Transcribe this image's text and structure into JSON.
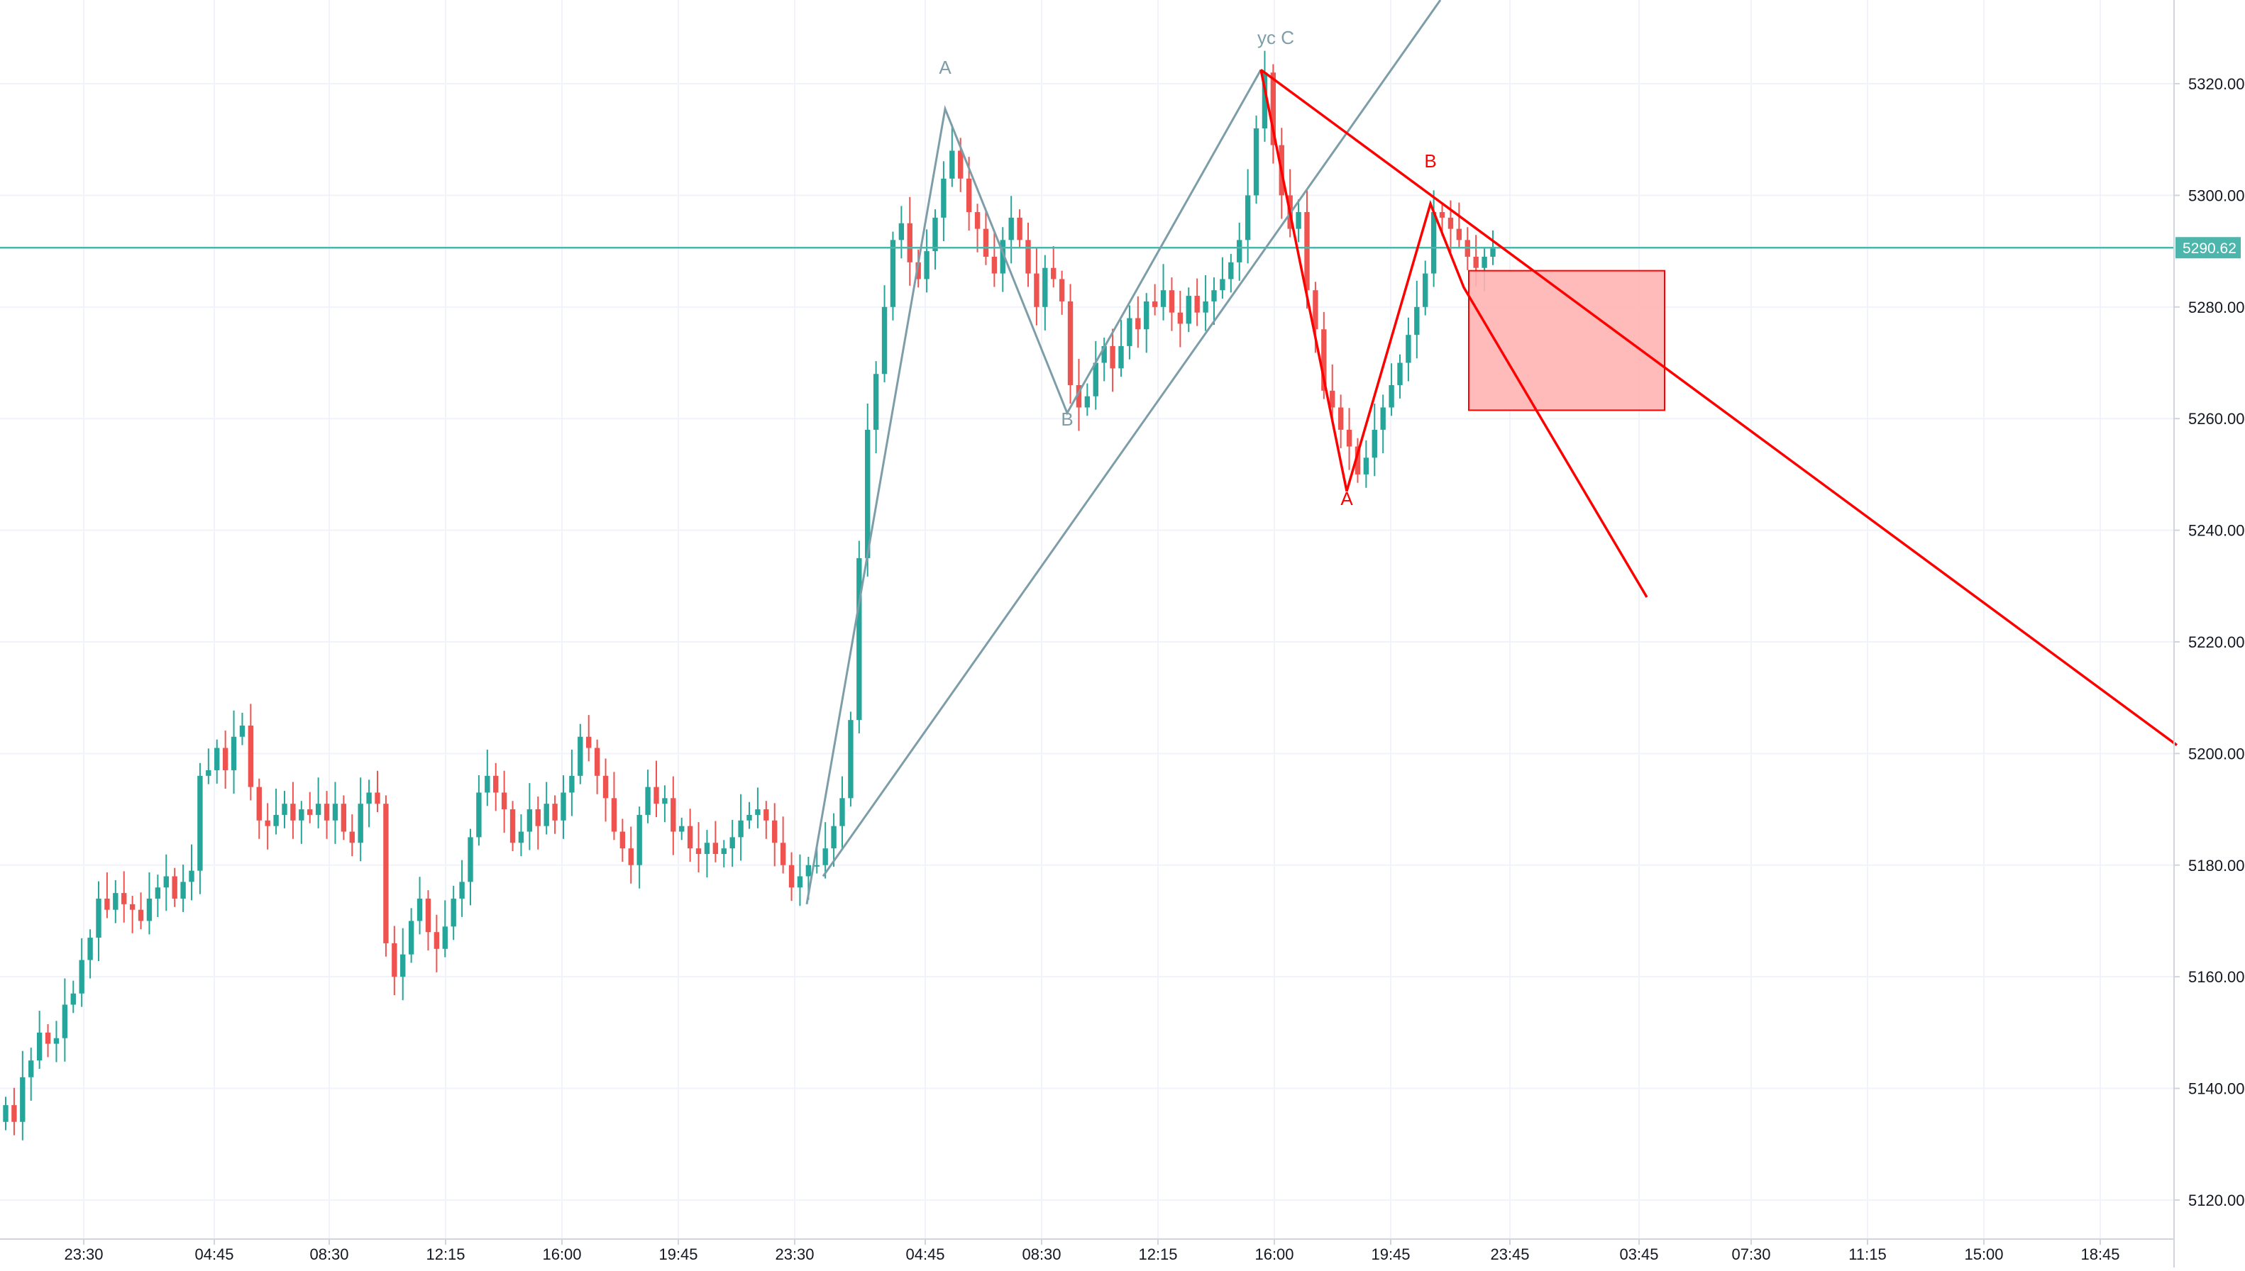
{
  "chart_data": {
    "type": "candlestick",
    "title": "",
    "ylim": [
      5113,
      5335
    ],
    "y_ticks": [
      "5120.00",
      "5140.00",
      "5160.00",
      "5180.00",
      "5200.00",
      "5220.00",
      "5240.00",
      "5260.00",
      "5280.00",
      "5300.00",
      "5320.00"
    ],
    "x_ticks": [
      "23:30",
      "04:45",
      "08:30",
      "12:15",
      "16:00",
      "19:45",
      "23:30",
      "04:45",
      "08:30",
      "12:15",
      "16:00",
      "19:45",
      "23:45",
      "03:45",
      "07:30",
      "11:15",
      "15:00",
      "18:45"
    ],
    "current_price": {
      "label": "5290.62",
      "value": 5290.62,
      "color": "#4db6ac"
    },
    "colors": {
      "up": "#26a69a",
      "down": "#ef5350",
      "grid": "#f0f3fa",
      "wave_blue": "#7d9ea8",
      "wave_red": "#ff0000",
      "box_fill": "#ffb3b3"
    },
    "candles_close": [
      5137,
      5134,
      5142,
      5145,
      5150,
      5148,
      5149,
      5155,
      5157,
      5163,
      5167,
      5174,
      5172,
      5175,
      5173,
      5172,
      5170,
      5174,
      5176,
      5178,
      5174,
      5177,
      5179,
      5196,
      5197,
      5201,
      5197,
      5203,
      5205,
      5194,
      5188,
      5187,
      5189,
      5191,
      5188,
      5190,
      5189,
      5191,
      5188,
      5191,
      5186,
      5184,
      5191,
      5193,
      5191,
      5166,
      5160,
      5164,
      5170,
      5174,
      5168,
      5165,
      5169,
      5174,
      5177,
      5185,
      5193,
      5196,
      5193,
      5190,
      5184,
      5186,
      5190,
      5187,
      5191,
      5188,
      5193,
      5196,
      5203,
      5201,
      5196,
      5192,
      5186,
      5183,
      5180,
      5189,
      5194,
      5191,
      5192,
      5186,
      5187,
      5183,
      5182,
      5184,
      5182,
      5183,
      5185,
      5188,
      5189,
      5190,
      5188,
      5184,
      5180,
      5176,
      5178,
      5180,
      5180,
      5183,
      5187,
      5192,
      5206,
      5235,
      5258,
      5268,
      5280,
      5292,
      5295,
      5288,
      5285,
      5290,
      5296,
      5303,
      5308,
      5303,
      5297,
      5294,
      5289,
      5286,
      5292,
      5296,
      5292,
      5286,
      5280,
      5287,
      5285,
      5281,
      5266,
      5262,
      5264,
      5270,
      5273,
      5269,
      5273,
      5278,
      5276,
      5281,
      5280,
      5283,
      5279,
      5277,
      5282,
      5279,
      5281,
      5283,
      5285,
      5288,
      5292,
      5300,
      5312,
      5322,
      5309,
      5300,
      5294,
      5297,
      5283,
      5276,
      5265,
      5262,
      5258,
      5255,
      5250,
      5253,
      5258,
      5262,
      5266,
      5270,
      5275,
      5280,
      5286,
      5297,
      5296,
      5294,
      5292,
      5289,
      5287,
      5289,
      5290.62
    ],
    "waves": {
      "blue_labels": [
        "A",
        "B",
        "yc C"
      ],
      "red_labels": [
        "A",
        "B"
      ]
    }
  }
}
